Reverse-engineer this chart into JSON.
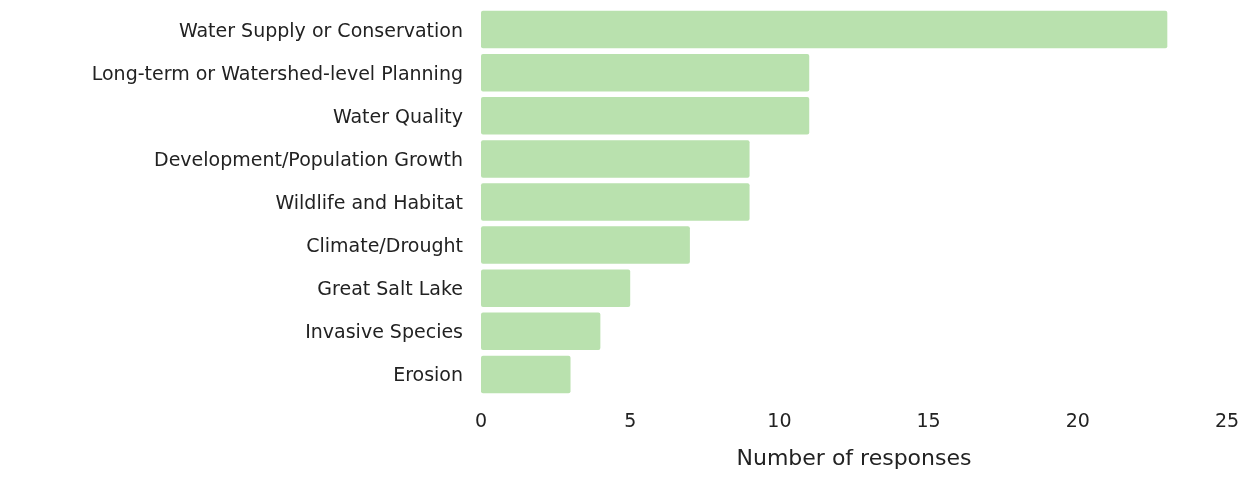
{
  "chart_data": {
    "type": "bar",
    "orientation": "horizontal",
    "xlabel": "Number of responses",
    "categories": [
      "Water Supply or Conservation",
      "Long-term or Watershed-level Planning",
      "Water Quality",
      "Development/Population Growth",
      "Wildlife and Habitat",
      "Climate/Drought",
      "Great Salt Lake",
      "Invasive Species",
      "Erosion"
    ],
    "values": [
      23,
      11,
      11,
      9,
      9,
      7,
      5,
      4,
      3
    ],
    "color": "#b9e1ae",
    "xlim": [
      0,
      25
    ],
    "xticks": [
      0,
      5,
      10,
      15,
      20,
      25
    ],
    "grid": false
  }
}
